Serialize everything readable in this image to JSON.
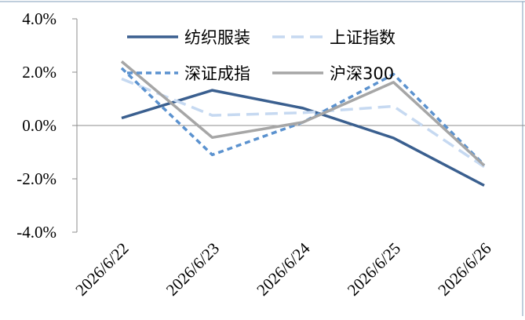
{
  "chart_data": {
    "type": "line",
    "categories": [
      "2026/6/22",
      "2026/6/23",
      "2026/6/24",
      "2026/6/25",
      "2026/6/26"
    ],
    "y_tick_labels": [
      "4.0%",
      "2.0%",
      "0.0%",
      "-2.0%",
      "-4.0%"
    ],
    "y_ticks": [
      4,
      2,
      0,
      -2,
      -4
    ],
    "ylim": [
      -4,
      4
    ],
    "unit": "%",
    "grid": false,
    "legend_position": "top",
    "series": [
      {
        "name": "纺织服装",
        "values": [
          0.28,
          1.32,
          0.65,
          -0.47,
          -2.25
        ],
        "color": "#3A5F8F",
        "dash": "solid"
      },
      {
        "name": "上证指数",
        "values": [
          1.75,
          0.38,
          0.48,
          0.72,
          -1.55
        ],
        "color": "#C6D9F1",
        "dash": "dashed"
      },
      {
        "name": "深证成指",
        "values": [
          2.15,
          -1.1,
          0.12,
          1.92,
          -1.48
        ],
        "color": "#5B92CF",
        "dash": "dotted"
      },
      {
        "name": "沪深300",
        "values": [
          2.4,
          -0.45,
          0.12,
          1.62,
          -1.5
        ],
        "color": "#A6A6A6",
        "dash": "solid"
      }
    ]
  }
}
